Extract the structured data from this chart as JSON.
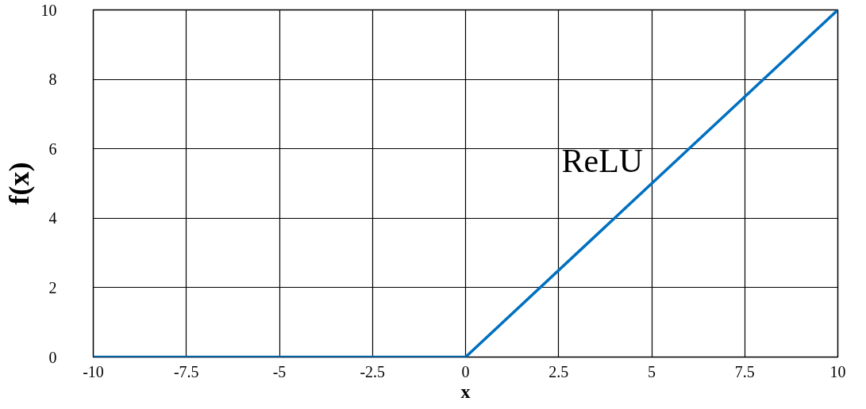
{
  "chart_data": {
    "type": "line",
    "xlabel": "x",
    "ylabel": "f(x)",
    "x": [
      -10,
      0,
      10
    ],
    "series": [
      {
        "color": "#0070c0",
        "values": [
          0,
          0,
          10
        ]
      }
    ],
    "xlim": [
      -10,
      10
    ],
    "xticks": [
      -10,
      -7.5,
      -5,
      -2.5,
      0,
      2.5,
      5,
      7.5,
      10
    ],
    "ylim": [
      0,
      10
    ],
    "yticks": [
      0,
      2,
      4,
      6,
      8,
      10
    ],
    "grid": true,
    "marker": "none",
    "line_style": "solid",
    "annotations": [
      "ReLU"
    ]
  }
}
